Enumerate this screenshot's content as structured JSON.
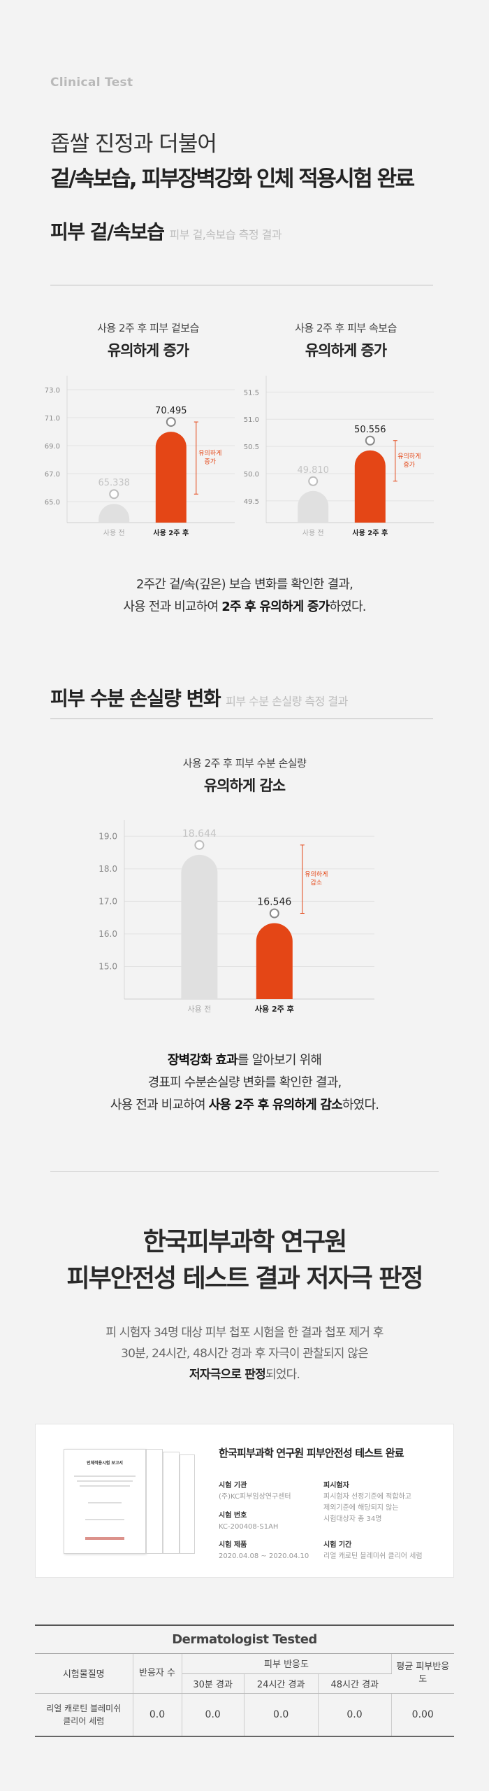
{
  "header": {
    "eyebrow": "Clinical Test",
    "line1": "좁쌀 진정과 더불어",
    "line2": "겉/속보습, 피부장벽강화 인체 적용시험 완료"
  },
  "section1": {
    "title": "피부 겉/속보습",
    "subtitle": "피부 겉,속보습 측정 결과"
  },
  "chart_data": [
    {
      "type": "bar",
      "title": "사용 2주 후 피부 겉보습",
      "subtitle": "유의하게 증가",
      "categories": [
        "사용 전",
        "사용 2주 후"
      ],
      "values": [
        65.338,
        70.495
      ],
      "value_labels": [
        "65.338",
        "70.495"
      ],
      "yticks": [
        "73.0",
        "71.0",
        "69.0",
        "67.0",
        "65.0"
      ],
      "ylim": [
        63.5,
        74.0
      ],
      "annotation": [
        "유의하게",
        "증가"
      ],
      "colors": [
        "#e0e0e0",
        "#e44616"
      ]
    },
    {
      "type": "bar",
      "title": "사용 2주 후 피부 속보습",
      "subtitle": "유의하게 증가",
      "categories": [
        "사용 전",
        "사용 2주 후"
      ],
      "values": [
        49.81,
        50.556
      ],
      "value_labels": [
        "49.810",
        "50.556"
      ],
      "yticks": [
        "51.5",
        "51.0",
        "50.5",
        "50.0",
        "49.5"
      ],
      "ylim": [
        49.1,
        51.8
      ],
      "annotation": [
        "유의하게",
        "증가"
      ],
      "colors": [
        "#e0e0e0",
        "#e44616"
      ]
    },
    {
      "type": "bar",
      "title": "사용 2주 후 피부 수분 손실량",
      "subtitle": "유의하게 감소",
      "categories": [
        "사용 전",
        "사용 2주 후"
      ],
      "values": [
        18.644,
        16.546
      ],
      "value_labels": [
        "18.644",
        "16.546"
      ],
      "yticks": [
        "19.0",
        "18.0",
        "17.0",
        "16.0",
        "15.0"
      ],
      "ylim": [
        14.0,
        19.5
      ],
      "annotation": [
        "유의하게",
        "감소"
      ],
      "colors": [
        "#e0e0e0",
        "#e44616"
      ]
    }
  ],
  "para1": {
    "l1": "2주간 겉/속(깊은) 보습 변화를 확인한 결과,",
    "l2a": "사용 전과 비교하여 ",
    "l2b": "2주 후 유의하게 증가",
    "l2c": "하였다."
  },
  "section2": {
    "title": "피부 수분 손실량 변화",
    "subtitle": "피부 수분 손실량 측정 결과"
  },
  "para2": {
    "l1a": "장벽강화 효과",
    "l1b": "를 알아보기 위해",
    "l2": "경표피 수분손실량 변화를 확인한 결과,",
    "l3a": "사용 전과 비교하여 ",
    "l3b": "사용 2주 후 유의하게 감소",
    "l3c": "하였다."
  },
  "safety": {
    "title1": "한국피부과학 연구원",
    "title2": "피부안전성 테스트 결과 저자극 판정",
    "p1": "피 시험자 34명 대상 피부 첩포 시험을 한 결과 첩포 제거 후",
    "p2": "30분, 24시간, 48시간 경과 후 자극이 관찰되지 않은",
    "p3a": "저자극으로 판정",
    "p3b": "되었다."
  },
  "certificate": {
    "doc_title": "인체적용시험 보고서",
    "title": "한국피부과학 연구원 피부안전성 테스트 완료",
    "org_label": "시험 기관",
    "org_value": "(주)KC피부임상연구센터",
    "no_label": "시험 번호",
    "no_value": "KC-200408-S1AH",
    "period_label": "시험 제품",
    "period_value": "2020.04.08 ~ 2020.04.10",
    "subject_label": "피시험자",
    "subject_value_1": "피시험자 선정기준에 적합하고",
    "subject_value_2": "제외기준에 해당되지 않는",
    "subject_value_3": "시험대상자 총 34명",
    "duration_label": "시험 기간",
    "duration_value": "리얼 캐로틴 블레미쉬 클리어 세럼"
  },
  "table": {
    "title": "Dermatologist Tested",
    "h_material": "시험물질명",
    "h_subjects": "반응자 수",
    "h_reaction": "피부 반응도",
    "h_30": "30분 경과",
    "h_24": "24시간 경과",
    "h_48": "48시간 경과",
    "h_avg": "평균 피부반응도",
    "row_name": "리얼 캐로틴 블레미쉬 클리어 세럼",
    "row_subjects": "0.0",
    "row_30": "0.0",
    "row_24": "0.0",
    "row_48": "0.0",
    "row_avg": "0.00"
  }
}
